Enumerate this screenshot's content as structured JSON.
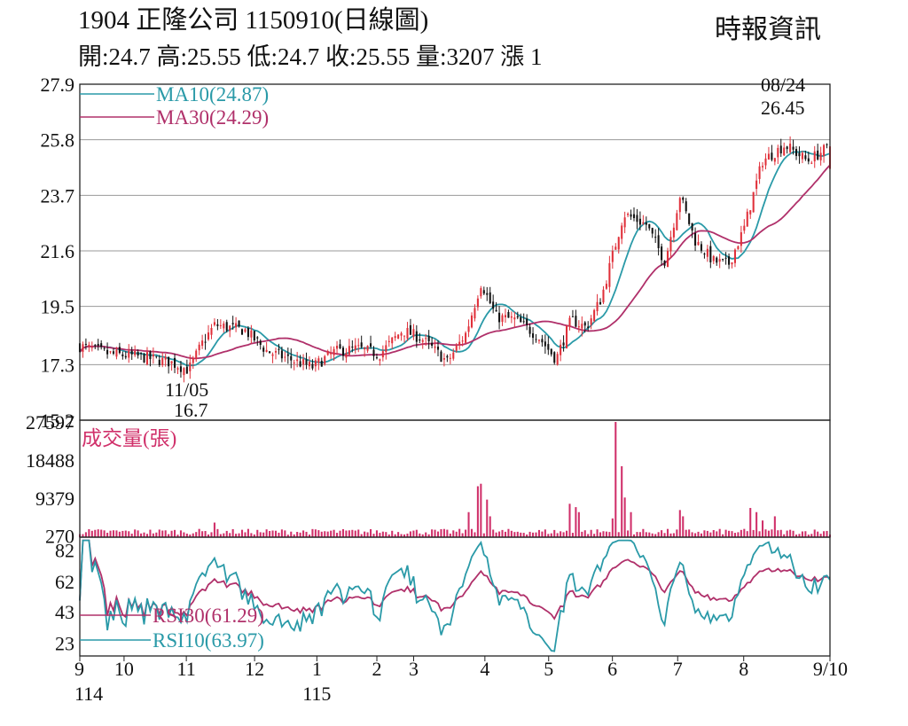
{
  "header": {
    "title": "1904  正隆公司 1150910(日線圖)",
    "quote": "開:24.7 高:25.55 低:24.7 收:25.55 量:3207 漲 1",
    "source": "時報資訊"
  },
  "colors": {
    "up": "#e0303a",
    "down": "#111111",
    "ma10": "#2a9aa8",
    "ma30": "#b0306a",
    "volume": "#d0306a",
    "grid": "#9a9a9a"
  },
  "chart_data": [
    {
      "type": "candlestick",
      "title": "",
      "ylim": [
        15.2,
        27.9
      ],
      "y_ticks": [
        "27.9",
        "25.8",
        "23.7",
        "21.6",
        "19.5",
        "17.3",
        "15.2"
      ],
      "legend": [
        {
          "name": "MA10(24.87)",
          "color": "#2a9aa8"
        },
        {
          "name": "MA30(24.29)",
          "color": "#b0306a"
        }
      ],
      "annotations": [
        {
          "date": "11/05",
          "label": "11/05",
          "value": "16.7"
        },
        {
          "date": "08/24",
          "label": "08/24",
          "value": "26.45"
        }
      ],
      "anchors": [
        {
          "t": 0,
          "p": 18.0
        },
        {
          "t": 0.04,
          "p": 17.7
        },
        {
          "t": 0.08,
          "p": 17.6
        },
        {
          "t": 0.12,
          "p": 17.4
        },
        {
          "t": 0.145,
          "p": 17.1
        },
        {
          "t": 0.165,
          "p": 18.2
        },
        {
          "t": 0.18,
          "p": 18.8
        },
        {
          "t": 0.22,
          "p": 18.6
        },
        {
          "t": 0.25,
          "p": 17.8
        },
        {
          "t": 0.31,
          "p": 17.2
        },
        {
          "t": 0.34,
          "p": 17.8
        },
        {
          "t": 0.37,
          "p": 17.9
        },
        {
          "t": 0.4,
          "p": 17.7
        },
        {
          "t": 0.43,
          "p": 18.6
        },
        {
          "t": 0.455,
          "p": 18.3
        },
        {
          "t": 0.49,
          "p": 17.4
        },
        {
          "t": 0.515,
          "p": 18.5
        },
        {
          "t": 0.535,
          "p": 20.4
        },
        {
          "t": 0.555,
          "p": 19.1
        },
        {
          "t": 0.58,
          "p": 19.0
        },
        {
          "t": 0.61,
          "p": 18.4
        },
        {
          "t": 0.635,
          "p": 17.5
        },
        {
          "t": 0.655,
          "p": 19.0
        },
        {
          "t": 0.675,
          "p": 18.7
        },
        {
          "t": 0.695,
          "p": 19.8
        },
        {
          "t": 0.725,
          "p": 23.0
        },
        {
          "t": 0.755,
          "p": 22.6
        },
        {
          "t": 0.78,
          "p": 21.2
        },
        {
          "t": 0.8,
          "p": 23.7
        },
        {
          "t": 0.82,
          "p": 22.0
        },
        {
          "t": 0.845,
          "p": 21.2
        },
        {
          "t": 0.865,
          "p": 21.1
        },
        {
          "t": 0.885,
          "p": 22.4
        },
        {
          "t": 0.91,
          "p": 25.0
        },
        {
          "t": 0.94,
          "p": 25.6
        },
        {
          "t": 0.97,
          "p": 25.0
        },
        {
          "t": 1.0,
          "p": 25.55
        }
      ]
    },
    {
      "type": "bar",
      "title": "成交量(張)",
      "y_ticks": [
        "27597",
        "18488",
        "9379",
        "270"
      ],
      "ylim": [
        0,
        27597
      ],
      "spikes": [
        {
          "t": 0.178,
          "v": 3500
        },
        {
          "t": 0.52,
          "v": 6000
        },
        {
          "t": 0.53,
          "v": 12200
        },
        {
          "t": 0.536,
          "v": 12800
        },
        {
          "t": 0.542,
          "v": 9000
        },
        {
          "t": 0.548,
          "v": 5000
        },
        {
          "t": 0.655,
          "v": 8000
        },
        {
          "t": 0.66,
          "v": 7200
        },
        {
          "t": 0.665,
          "v": 6000
        },
        {
          "t": 0.71,
          "v": 4500
        },
        {
          "t": 0.716,
          "v": 27597
        },
        {
          "t": 0.722,
          "v": 17000
        },
        {
          "t": 0.728,
          "v": 9500
        },
        {
          "t": 0.734,
          "v": 6000
        },
        {
          "t": 0.8,
          "v": 6500
        },
        {
          "t": 0.806,
          "v": 5000
        },
        {
          "t": 0.895,
          "v": 7000
        },
        {
          "t": 0.9,
          "v": 6000
        },
        {
          "t": 0.91,
          "v": 4000
        },
        {
          "t": 0.925,
          "v": 5000
        }
      ]
    },
    {
      "type": "line",
      "title": "",
      "ylim": [
        15,
        90
      ],
      "y_ticks": [
        "82",
        "62",
        "43",
        "23"
      ],
      "legend": [
        {
          "name": "RSI30(61.29)",
          "color": "#b0306a"
        },
        {
          "name": "RSI10(63.97)",
          "color": "#2a9aa8"
        }
      ]
    }
  ],
  "x_axis": {
    "ticks": [
      {
        "t": 0.0,
        "label": "9"
      },
      {
        "t": 0.059,
        "label": "10"
      },
      {
        "t": 0.142,
        "label": "11"
      },
      {
        "t": 0.233,
        "label": "12"
      },
      {
        "t": 0.316,
        "label": "1"
      },
      {
        "t": 0.396,
        "label": "2"
      },
      {
        "t": 0.445,
        "label": "3"
      },
      {
        "t": 0.54,
        "label": "4"
      },
      {
        "t": 0.625,
        "label": "5"
      },
      {
        "t": 0.71,
        "label": "6"
      },
      {
        "t": 0.797,
        "label": "7"
      },
      {
        "t": 0.885,
        "label": "8"
      },
      {
        "t": 1.0,
        "label": "9/10"
      }
    ],
    "year_labels": [
      {
        "t": 0.0,
        "label": "114"
      },
      {
        "t": 0.316,
        "label": "115"
      }
    ]
  }
}
